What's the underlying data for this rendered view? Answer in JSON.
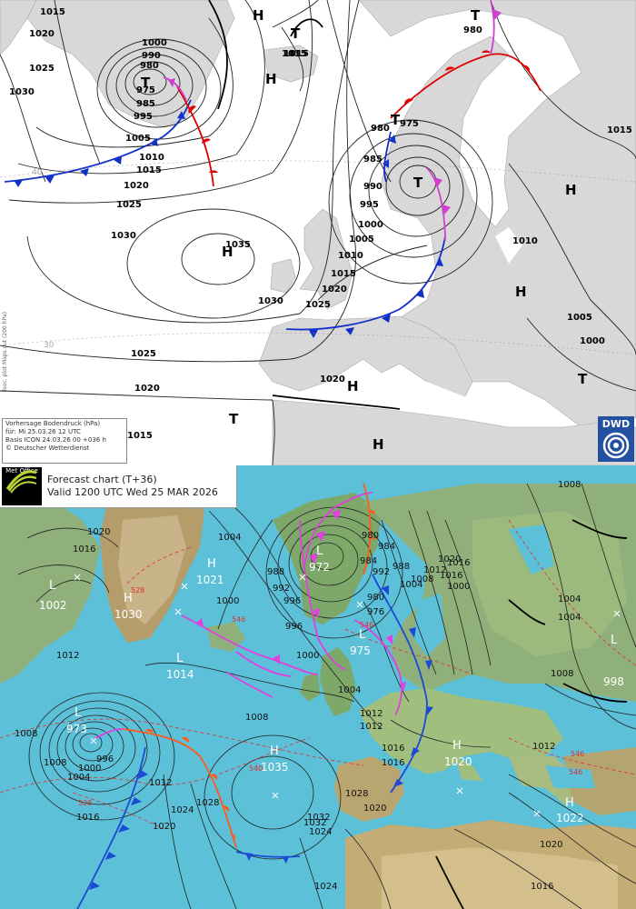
{
  "dwd": {
    "legend": {
      "line1": "Vorhersage Bodendruck (hPa)",
      "line2": "für:  Mi 25.03.26 12 UTC",
      "line3": "Basis ICON 24.03.26 00 +036 h",
      "line4": "© Deutscher Wetterdienst"
    },
    "side_text": "isoc. plot Maps cut (200 hPa)",
    "logo_text": "DWD",
    "grid_labels": [
      "40",
      "30"
    ],
    "centres": [
      {
        "label": "T",
        "value": "975"
      },
      {
        "label": "H",
        "value": "1035"
      },
      {
        "label": "T",
        "value": "975"
      },
      {
        "label": "T",
        "value": "980"
      },
      {
        "label": "T",
        "value": ""
      },
      {
        "label": "T",
        "value": "1015"
      },
      {
        "label": "T",
        "value": "1015"
      },
      {
        "label": "T",
        "value": ""
      },
      {
        "label": "H",
        "value": ""
      },
      {
        "label": "H",
        "value": ""
      },
      {
        "label": "H",
        "value": ""
      },
      {
        "label": "H",
        "value": ""
      },
      {
        "label": "H",
        "value": "1020"
      },
      {
        "label": "H",
        "value": ""
      },
      {
        "label": "T",
        "value": ""
      }
    ],
    "isobar_labels": [
      "1015",
      "1020",
      "1025",
      "1030",
      "1000",
      "990",
      "980",
      "985",
      "995",
      "1005",
      "1010",
      "1015",
      "1020",
      "1025",
      "1030",
      "1030",
      "1025",
      "1020",
      "1015",
      "980",
      "985",
      "990",
      "995",
      "1000",
      "1005",
      "1010",
      "1015",
      "1020",
      "1025",
      "1015",
      "1010",
      "1005",
      "1000"
    ]
  },
  "metoffice": {
    "logo_text": "Met Office",
    "title_line1": "Forecast chart (T+36)",
    "title_line2": "Valid 1200 UTC Wed 25 MAR 2026",
    "centres": [
      {
        "label": "L",
        "value": "1002"
      },
      {
        "label": "H",
        "value": "1030"
      },
      {
        "label": "H",
        "value": "1021"
      },
      {
        "label": "L",
        "value": "972"
      },
      {
        "label": "L",
        "value": "975"
      },
      {
        "label": "L",
        "value": "1014"
      },
      {
        "label": "L",
        "value": "973"
      },
      {
        "label": "H",
        "value": "1035"
      },
      {
        "label": "H",
        "value": "1020"
      },
      {
        "label": "H",
        "value": "1022"
      },
      {
        "label": "L",
        "value": "998"
      }
    ],
    "isobar_labels": [
      "1020",
      "1016",
      "1012",
      "1008",
      "1004",
      "1000",
      "996",
      "992",
      "988",
      "984",
      "980",
      "1024",
      "1028",
      "1032",
      "1020",
      "1016",
      "1012",
      "1008",
      "1004",
      "1000",
      "996",
      "992",
      "988",
      "984",
      "980",
      "976",
      "1016",
      "1012",
      "1008",
      "1004",
      "1000",
      "996",
      "1016",
      "1012",
      "1020",
      "1024",
      "1028",
      "1032",
      "1024",
      "1020",
      "1016",
      "1012",
      "1008",
      "1004",
      "1000",
      "1016",
      "1020",
      "1016",
      "1012",
      "1008",
      "1004",
      "1008",
      "1004"
    ],
    "thickness_labels": [
      "528",
      "546",
      "546",
      "540",
      "546",
      "528",
      "546"
    ]
  }
}
